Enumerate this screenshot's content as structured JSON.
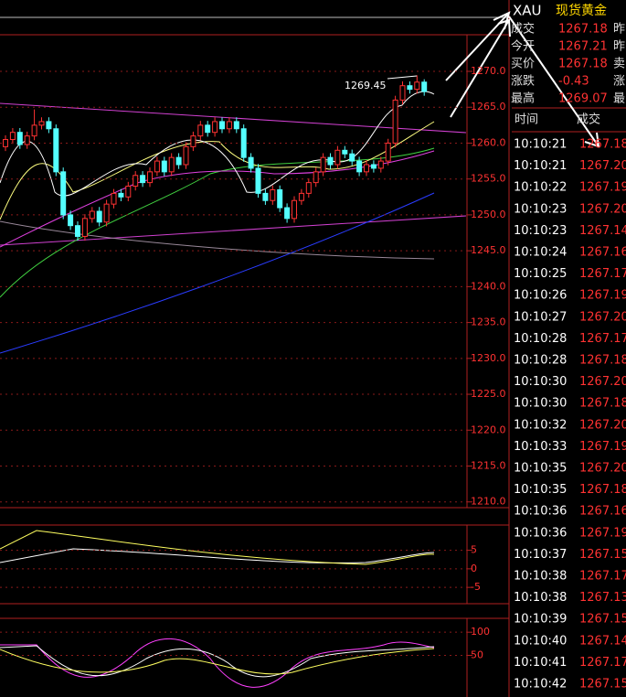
{
  "symbol": {
    "code": "XAU",
    "name": "现货黄金"
  },
  "quote": [
    {
      "label": "成交",
      "value": "1267.18",
      "extra": "昨"
    },
    {
      "label": "今开",
      "value": "1267.21",
      "extra": "昨"
    },
    {
      "label": "买价",
      "value": "1267.18",
      "extra": "卖"
    },
    {
      "label": "涨跌",
      "value": "-0.43",
      "extra": "涨"
    },
    {
      "label": "最高",
      "value": "1269.07",
      "extra": "最"
    }
  ],
  "trades_header": [
    "时间",
    "成交"
  ],
  "trades": [
    [
      "10:10:21",
      "1267.18"
    ],
    [
      "10:10:21",
      "1267.20"
    ],
    [
      "10:10:22",
      "1267.19"
    ],
    [
      "10:10:23",
      "1267.20"
    ],
    [
      "10:10:23",
      "1267.14"
    ],
    [
      "10:10:24",
      "1267.16"
    ],
    [
      "10:10:25",
      "1267.17"
    ],
    [
      "10:10:26",
      "1267.19"
    ],
    [
      "10:10:27",
      "1267.20"
    ],
    [
      "10:10:28",
      "1267.17"
    ],
    [
      "10:10:28",
      "1267.18"
    ],
    [
      "10:10:30",
      "1267.20"
    ],
    [
      "10:10:30",
      "1267.18"
    ],
    [
      "10:10:32",
      "1267.20"
    ],
    [
      "10:10:33",
      "1267.19"
    ],
    [
      "10:10:35",
      "1267.20"
    ],
    [
      "10:10:35",
      "1267.18"
    ],
    [
      "10:10:36",
      "1267.16"
    ],
    [
      "10:10:36",
      "1267.19"
    ],
    [
      "10:10:37",
      "1267.15"
    ],
    [
      "10:10:38",
      "1267.17"
    ],
    [
      "10:10:38",
      "1267.13"
    ],
    [
      "10:10:39",
      "1267.15"
    ],
    [
      "10:10:40",
      "1267.14"
    ],
    [
      "10:10:41",
      "1267.17"
    ],
    [
      "10:10:42",
      "1267.15"
    ]
  ],
  "chart_data": {
    "type": "candlestick",
    "up_color": "#ff3232",
    "down_color": "#54ffff",
    "ylim": [
      1209.2,
      1275.1
    ],
    "yticks": [
      {
        "value": 1270,
        "label": "1270.0"
      },
      {
        "value": 1265,
        "label": "1265.0"
      },
      {
        "value": 1260,
        "label": "1260.0"
      },
      {
        "value": 1255,
        "label": "1255.0"
      },
      {
        "value": 1250,
        "label": "1250.0"
      },
      {
        "value": 1245,
        "label": "1245.0"
      },
      {
        "value": 1240,
        "label": "1240.0"
      },
      {
        "value": 1235,
        "label": "1235.0"
      },
      {
        "value": 1230,
        "label": "1230.0"
      },
      {
        "value": 1225,
        "label": "1225.0"
      },
      {
        "value": 1220,
        "label": "1220.0"
      },
      {
        "value": 1215,
        "label": "1215.0"
      },
      {
        "value": 1210,
        "label": "1210.0"
      }
    ],
    "open": [
      1259.5,
      1260.5,
      1261.5,
      1259.8,
      1261.0,
      1262.5,
      1263.0,
      1262.0,
      1256.0,
      1250.0,
      1248.5,
      1247.0,
      1249.5,
      1250.5,
      1249.0,
      1251.5,
      1253.0,
      1252.5,
      1254.0,
      1255.5,
      1254.5,
      1256.0,
      1257.5,
      1256.0,
      1258.0,
      1257.0,
      1259.5,
      1261.0,
      1262.5,
      1261.5,
      1263.0,
      1262.0,
      1263.0,
      1262.0,
      1258.0,
      1256.5,
      1253.0,
      1252.0,
      1253.5,
      1251.0,
      1249.5,
      1252.0,
      1253.0,
      1254.5,
      1256.0,
      1258.0,
      1257.0,
      1259.0,
      1258.5,
      1257.5,
      1256.0,
      1257.0,
      1256.5,
      1257.5,
      1260.0,
      1266.0,
      1268.0,
      1267.5,
      1268.5
    ],
    "close": [
      1260.5,
      1261.5,
      1259.8,
      1261.0,
      1262.5,
      1263.0,
      1262.0,
      1256.0,
      1250.0,
      1248.5,
      1247.0,
      1249.5,
      1250.5,
      1249.0,
      1251.5,
      1253.0,
      1252.5,
      1254.0,
      1255.5,
      1254.5,
      1256.0,
      1257.5,
      1256.0,
      1258.0,
      1257.0,
      1259.5,
      1261.0,
      1262.5,
      1261.5,
      1263.0,
      1262.0,
      1263.0,
      1262.0,
      1258.0,
      1256.5,
      1253.0,
      1252.0,
      1253.5,
      1251.0,
      1249.5,
      1252.0,
      1253.0,
      1254.5,
      1256.0,
      1258.0,
      1257.0,
      1259.0,
      1258.5,
      1257.5,
      1256.0,
      1257.0,
      1256.5,
      1257.5,
      1260.0,
      1266.0,
      1268.0,
      1267.5,
      1268.5,
      1267.2
    ],
    "high": [
      1261.1,
      1262.1,
      1262.1,
      1261.6,
      1264.7,
      1263.6,
      1263.6,
      1262.6,
      1256.6,
      1250.6,
      1249.1,
      1250.1,
      1251.1,
      1251.1,
      1252.1,
      1253.6,
      1253.6,
      1254.6,
      1256.1,
      1256.1,
      1256.6,
      1258.1,
      1258.1,
      1258.6,
      1258.6,
      1260.1,
      1261.6,
      1263.1,
      1263.1,
      1263.6,
      1263.6,
      1263.6,
      1263.6,
      1262.6,
      1258.6,
      1257.1,
      1253.6,
      1254.1,
      1254.1,
      1251.6,
      1252.6,
      1253.6,
      1255.1,
      1256.6,
      1258.6,
      1258.6,
      1259.6,
      1259.6,
      1259.1,
      1258.1,
      1257.6,
      1257.6,
      1258.1,
      1260.6,
      1266.6,
      1268.6,
      1268.6,
      1269.45,
      1268.9
    ],
    "low": [
      1258.9,
      1259.9,
      1259.2,
      1259.2,
      1260.4,
      1261.9,
      1261.4,
      1255.4,
      1249.4,
      1247.9,
      1246.4,
      1246.4,
      1248.9,
      1248.4,
      1248.4,
      1250.9,
      1251.9,
      1251.9,
      1253.4,
      1253.9,
      1253.9,
      1255.4,
      1255.4,
      1255.4,
      1256.4,
      1256.4,
      1258.9,
      1260.4,
      1260.9,
      1260.9,
      1261.4,
      1261.4,
      1261.4,
      1257.4,
      1255.9,
      1252.4,
      1251.4,
      1251.4,
      1250.4,
      1248.9,
      1248.9,
      1251.4,
      1252.4,
      1253.9,
      1255.4,
      1256.4,
      1256.4,
      1257.9,
      1256.9,
      1255.4,
      1255.4,
      1255.9,
      1255.9,
      1256.9,
      1259.4,
      1265.4,
      1266.9,
      1266.9,
      1266.6
    ]
  },
  "macd_panel": {
    "ylim": [
      -9.4,
      11.8
    ],
    "yticks": [
      5,
      0,
      -5
    ]
  },
  "kdj_panel": {
    "ylim": [
      -40,
      130
    ],
    "yticks": [
      100,
      50
    ]
  }
}
